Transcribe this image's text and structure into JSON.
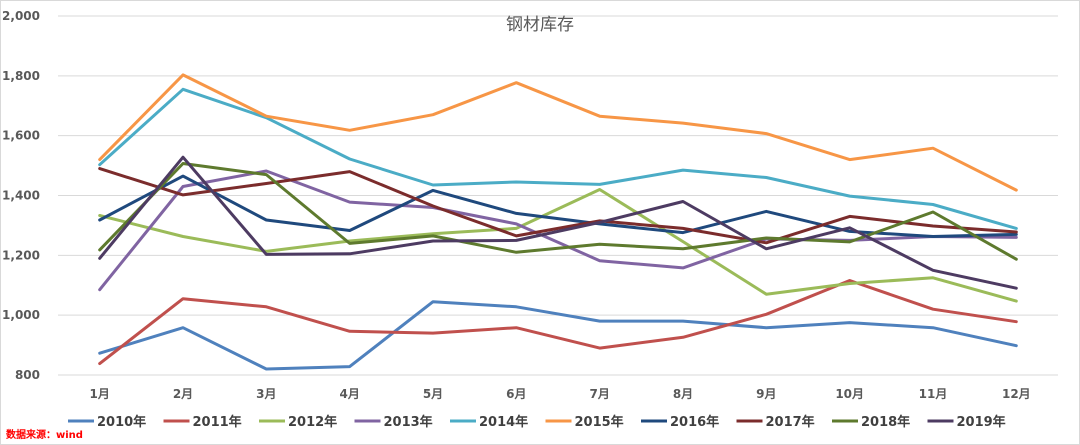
{
  "source_note": "数据来源：wind",
  "chart_data": {
    "type": "line",
    "title": "钢材库存",
    "xlabel": "",
    "ylabel": "",
    "categories": [
      "1月",
      "2月",
      "3月",
      "4月",
      "5月",
      "6月",
      "7月",
      "8月",
      "9月",
      "10月",
      "11月",
      "12月"
    ],
    "ylim": [
      800,
      2000
    ],
    "yticks": [
      800,
      1000,
      1200,
      1400,
      1600,
      1800,
      2000
    ],
    "ytick_labels": [
      "800",
      "1,000",
      "1,200",
      "1,400",
      "1,600",
      "1,800",
      "2,000"
    ],
    "grid": true,
    "legend_position": "bottom",
    "series": [
      {
        "name": "2010年",
        "color": "#4f81bd",
        "values": [
          873,
          958,
          820,
          828,
          1045,
          1028,
          980,
          980,
          958,
          975,
          958,
          898
        ]
      },
      {
        "name": "2011年",
        "color": "#c0504d",
        "values": [
          838,
          1055,
          1028,
          946,
          940,
          958,
          890,
          926,
          1003,
          1116,
          1020,
          978
        ]
      },
      {
        "name": "2012年",
        "color": "#9bbb59",
        "values": [
          1333,
          1263,
          1213,
          1248,
          1272,
          1290,
          1420,
          1246,
          1070,
          1106,
          1125,
          1047
        ]
      },
      {
        "name": "2013年",
        "color": "#8064a2",
        "values": [
          1085,
          1430,
          1482,
          1378,
          1360,
          1305,
          1182,
          1158,
          1255,
          1250,
          1263,
          1260
        ]
      },
      {
        "name": "2014年",
        "color": "#4bacc6",
        "values": [
          1503,
          1755,
          1660,
          1522,
          1435,
          1445,
          1437,
          1485,
          1460,
          1398,
          1370,
          1290
        ]
      },
      {
        "name": "2015年",
        "color": "#f79646",
        "values": [
          1520,
          1803,
          1665,
          1618,
          1670,
          1777,
          1665,
          1642,
          1607,
          1520,
          1558,
          1418
        ]
      },
      {
        "name": "2016年",
        "color": "#1f497d",
        "values": [
          1318,
          1465,
          1318,
          1283,
          1417,
          1340,
          1305,
          1276,
          1347,
          1280,
          1263,
          1270
        ]
      },
      {
        "name": "2017年",
        "color": "#7b2c2c",
        "values": [
          1490,
          1402,
          1440,
          1480,
          1365,
          1265,
          1315,
          1290,
          1242,
          1330,
          1298,
          1278
        ]
      },
      {
        "name": "2018年",
        "color": "#5e7a2e",
        "values": [
          1218,
          1507,
          1470,
          1240,
          1265,
          1210,
          1237,
          1222,
          1258,
          1245,
          1345,
          1187
        ]
      },
      {
        "name": "2019年",
        "color": "#4d3b62",
        "values": [
          1190,
          1528,
          1203,
          1205,
          1248,
          1250,
          1310,
          1380,
          1222,
          1292,
          1150,
          1090
        ]
      }
    ]
  }
}
